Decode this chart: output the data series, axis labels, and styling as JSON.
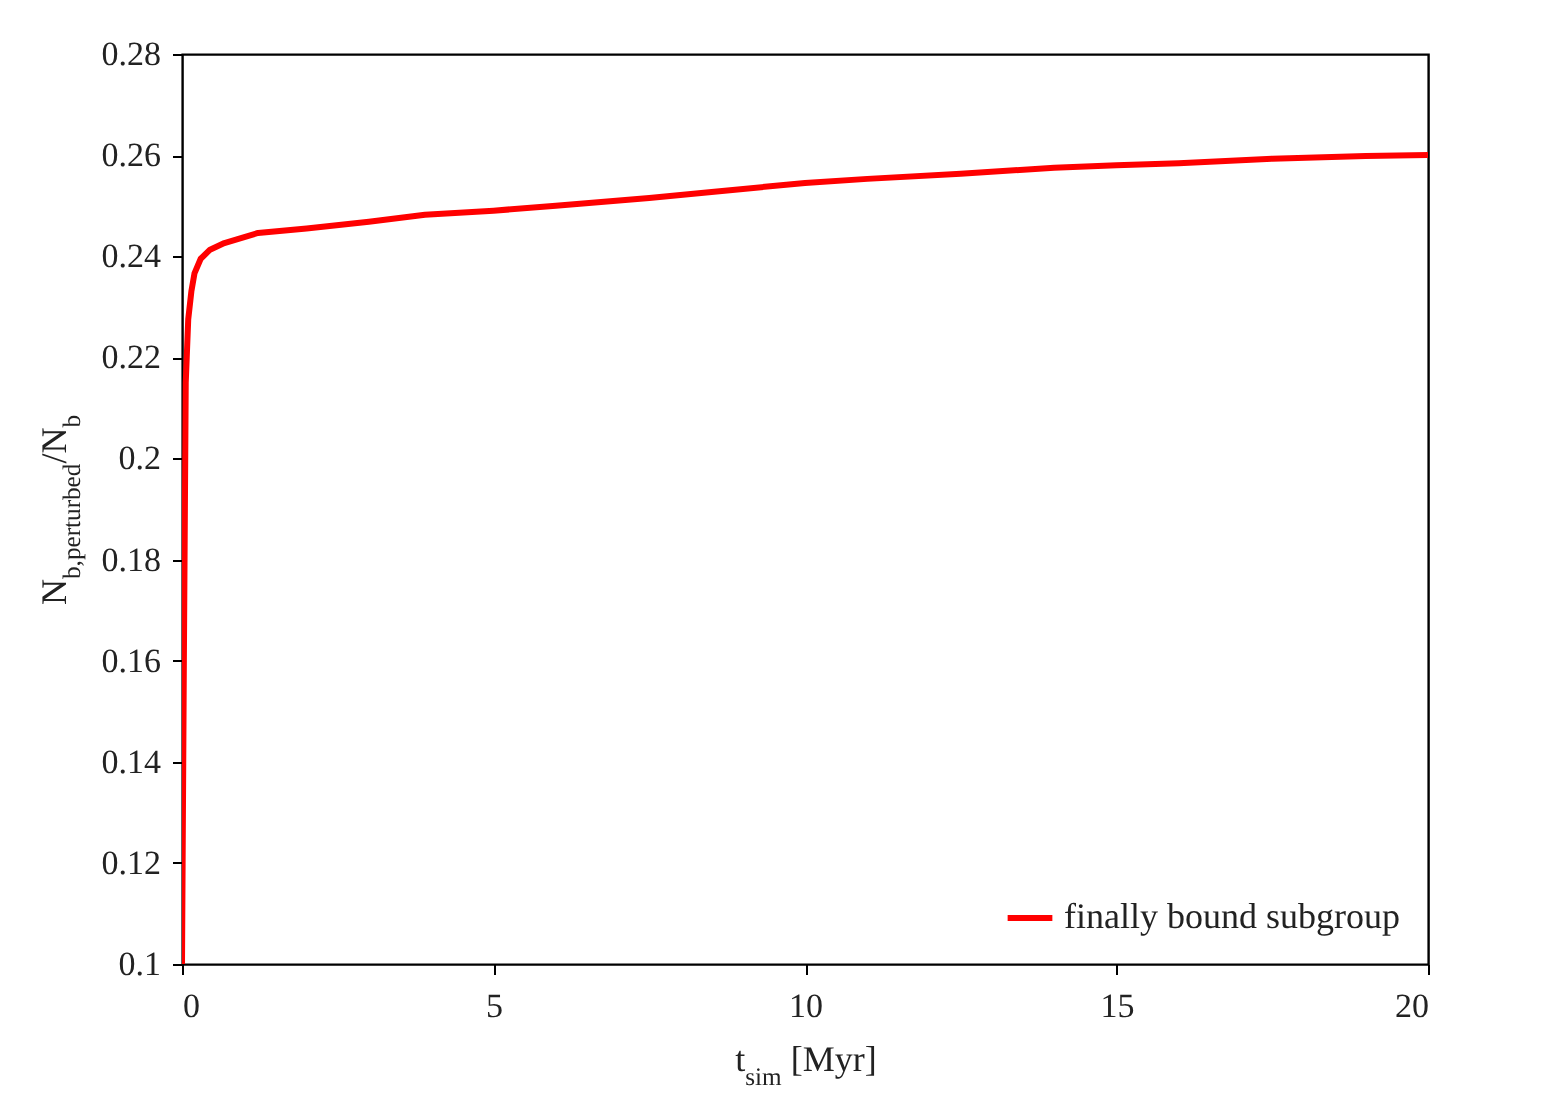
{
  "chart_data": {
    "type": "line",
    "xlabel": "t$_{sim}$ [Myr]",
    "ylabel": "N$_{b,perturbed}$/N$_{b}$",
    "xlim": [
      0,
      20
    ],
    "xticks": [
      0,
      5,
      10,
      15,
      20
    ],
    "ylim": [
      0.1,
      0.28
    ],
    "yticks": [
      0.1,
      0.12,
      0.14,
      0.16,
      0.18,
      0.2,
      0.22,
      0.24,
      0.26,
      0.28
    ],
    "grid": false,
    "legend": "bottom right",
    "marker": "none",
    "line_style": "solid",
    "series": [
      {
        "name": "finally bound subgroup",
        "color": "#ff0000",
        "x": [
          0,
          0.03,
          0.06,
          0.1,
          0.15,
          0.2,
          0.3,
          0.45,
          0.68,
          1.0,
          1.22,
          2,
          3,
          3.9,
          5,
          6,
          7.5,
          8.5,
          10,
          11,
          12.5,
          14,
          15,
          16,
          17.5,
          19,
          20
        ],
        "values": [
          0.1,
          0.16,
          0.215,
          0.2275,
          0.233,
          0.2366,
          0.2395,
          0.2413,
          0.2426,
          0.2438,
          0.2446,
          0.2455,
          0.2468,
          0.2482,
          0.249,
          0.25,
          0.2515,
          0.2527,
          0.2545,
          0.2553,
          0.2563,
          0.2575,
          0.258,
          0.2584,
          0.2593,
          0.2598,
          0.26
        ]
      }
    ]
  }
}
